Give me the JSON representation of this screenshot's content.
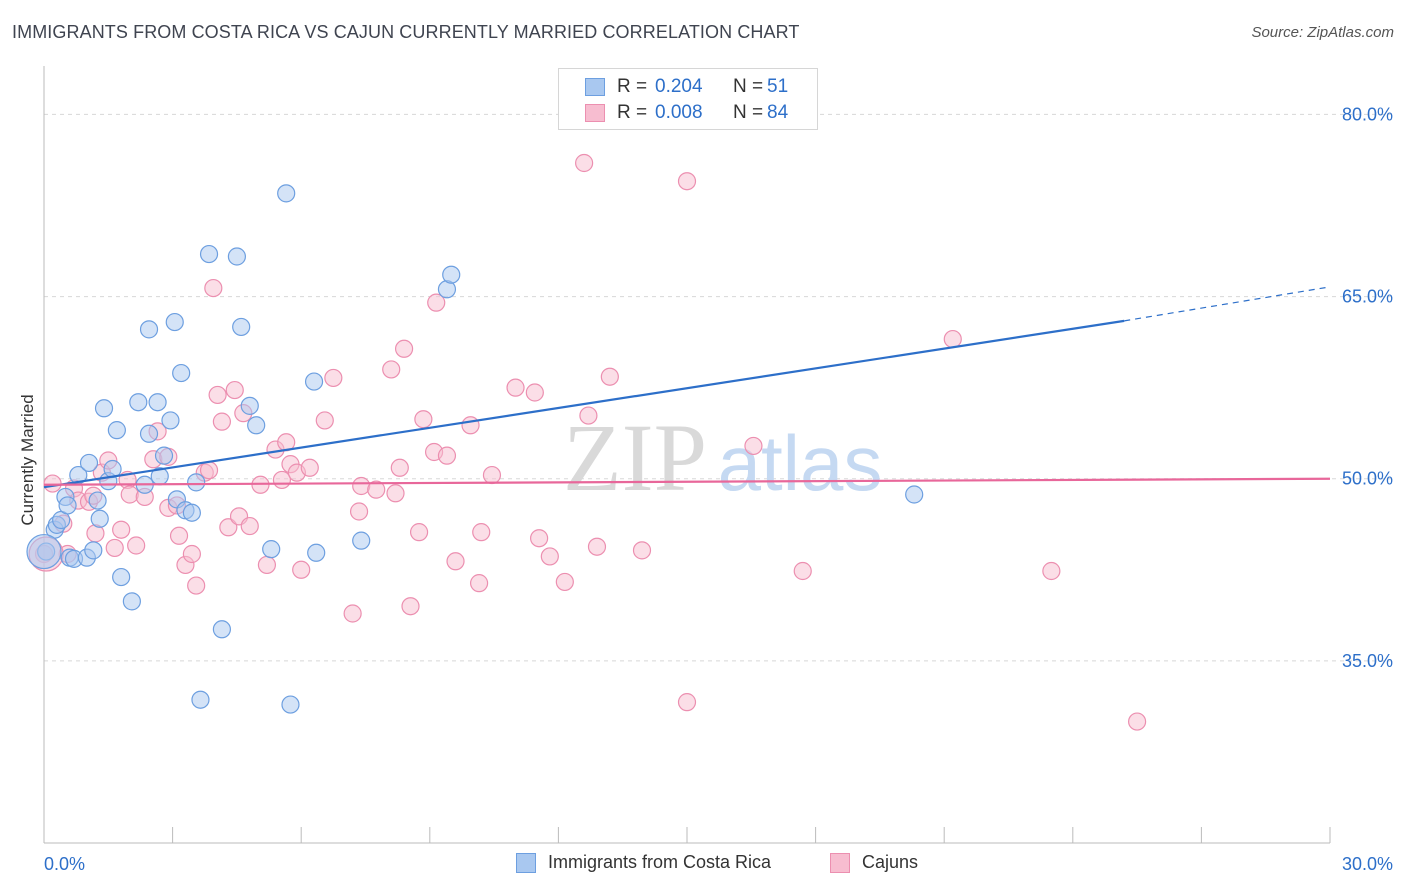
{
  "title": "IMMIGRANTS FROM COSTA RICA VS CAJUN CURRENTLY MARRIED CORRELATION CHART",
  "source": "Source: ZipAtlas.com",
  "watermark": {
    "zip": "ZIP",
    "atlas": "atlas"
  },
  "colors": {
    "blue_fill": "#a9c8f0",
    "blue_stroke": "#6d9fe0",
    "blue_line": "#2d6fc9",
    "pink_fill": "#f7bdd0",
    "pink_stroke": "#ec8fb0",
    "pink_line": "#e8679a",
    "tick_label": "#2d6fc9",
    "grid": "#d8d8d8"
  },
  "legend_top": [
    {
      "r_label": "R =",
      "r_value": "0.204",
      "n_label": "N =",
      "n_value": "51"
    },
    {
      "r_label": "R =",
      "r_value": "0.008",
      "n_label": "N =",
      "n_value": "84"
    }
  ],
  "legend_bottom": [
    "Immigrants from Costa Rica",
    "Cajuns"
  ],
  "chart_data": {
    "type": "scatter",
    "title": "IMMIGRANTS FROM COSTA RICA VS CAJUN CURRENTLY MARRIED CORRELATION CHART",
    "xlabel": "",
    "ylabel": "Currently Married",
    "xlim": [
      0,
      30
    ],
    "ylim": [
      20,
      83
    ],
    "x_tick_labels": [
      {
        "value": 0,
        "label": "0.0%"
      },
      {
        "value": 30,
        "label": "30.0%"
      }
    ],
    "y_tick_labels": [
      {
        "value": 35,
        "label": "35.0%"
      },
      {
        "value": 50,
        "label": "50.0%"
      },
      {
        "value": 65,
        "label": "65.0%"
      },
      {
        "value": 80,
        "label": "80.0%"
      }
    ],
    "grid": "horizontal dashed",
    "legend_position": "top-center",
    "series": [
      {
        "name": "Immigrants from Costa Rica",
        "trend": {
          "x0": 0,
          "y0": 49.3,
          "x1": 25.2,
          "y1": 63.0,
          "dashed_to_x": 30,
          "dashed_to_y": 65.8
        },
        "points": [
          [
            0.05,
            44.0
          ],
          [
            0.25,
            45.8
          ],
          [
            0.3,
            46.2
          ],
          [
            0.4,
            46.6
          ],
          [
            0.5,
            48.5
          ],
          [
            0.55,
            47.8
          ],
          [
            0.6,
            43.5
          ],
          [
            0.7,
            43.4
          ],
          [
            0.8,
            50.3
          ],
          [
            1.0,
            43.5
          ],
          [
            1.05,
            51.3
          ],
          [
            1.15,
            44.1
          ],
          [
            1.25,
            48.2
          ],
          [
            1.3,
            46.7
          ],
          [
            1.4,
            55.8
          ],
          [
            1.5,
            49.8
          ],
          [
            1.6,
            50.8
          ],
          [
            1.7,
            54.0
          ],
          [
            1.8,
            41.9
          ],
          [
            2.05,
            39.9
          ],
          [
            2.2,
            56.3
          ],
          [
            2.35,
            49.5
          ],
          [
            2.45,
            53.7
          ],
          [
            2.45,
            62.3
          ],
          [
            2.65,
            56.3
          ],
          [
            2.7,
            50.2
          ],
          [
            2.8,
            51.9
          ],
          [
            2.95,
            54.8
          ],
          [
            3.05,
            62.9
          ],
          [
            3.1,
            48.3
          ],
          [
            3.2,
            58.7
          ],
          [
            3.3,
            47.4
          ],
          [
            3.45,
            47.2
          ],
          [
            3.55,
            49.7
          ],
          [
            3.65,
            31.8
          ],
          [
            3.85,
            68.5
          ],
          [
            4.15,
            37.6
          ],
          [
            4.5,
            68.3
          ],
          [
            4.6,
            62.5
          ],
          [
            4.8,
            56.0
          ],
          [
            4.95,
            54.4
          ],
          [
            5.3,
            44.2
          ],
          [
            5.65,
            73.5
          ],
          [
            5.75,
            31.4
          ],
          [
            6.3,
            58.0
          ],
          [
            6.35,
            43.9
          ],
          [
            7.4,
            44.9
          ],
          [
            9.4,
            65.6
          ],
          [
            9.5,
            66.8
          ],
          [
            20.3,
            48.7
          ],
          [
            0.0,
            44.0
          ]
        ]
      },
      {
        "name": "Cajuns",
        "trend": {
          "x0": 0,
          "y0": 49.5,
          "x1": 30,
          "y1": 50.0
        },
        "points": [
          [
            0.0,
            43.8
          ],
          [
            0.2,
            49.6
          ],
          [
            0.45,
            46.3
          ],
          [
            0.55,
            43.8
          ],
          [
            0.7,
            49.2
          ],
          [
            0.8,
            48.2
          ],
          [
            1.05,
            48.1
          ],
          [
            1.15,
            48.6
          ],
          [
            1.2,
            45.5
          ],
          [
            1.35,
            50.5
          ],
          [
            1.5,
            51.5
          ],
          [
            1.65,
            44.3
          ],
          [
            1.8,
            45.8
          ],
          [
            1.95,
            49.9
          ],
          [
            2.0,
            48.7
          ],
          [
            2.15,
            44.5
          ],
          [
            2.35,
            48.5
          ],
          [
            2.55,
            51.6
          ],
          [
            2.65,
            53.9
          ],
          [
            2.9,
            51.8
          ],
          [
            2.9,
            47.6
          ],
          [
            3.1,
            47.8
          ],
          [
            3.15,
            45.3
          ],
          [
            3.3,
            42.9
          ],
          [
            3.45,
            43.8
          ],
          [
            3.55,
            41.2
          ],
          [
            3.75,
            50.5
          ],
          [
            3.85,
            50.7
          ],
          [
            3.95,
            65.7
          ],
          [
            4.05,
            56.9
          ],
          [
            4.15,
            54.7
          ],
          [
            4.3,
            46.0
          ],
          [
            4.45,
            57.3
          ],
          [
            4.55,
            46.9
          ],
          [
            4.65,
            55.4
          ],
          [
            4.8,
            46.1
          ],
          [
            5.05,
            49.5
          ],
          [
            5.2,
            42.9
          ],
          [
            5.4,
            52.4
          ],
          [
            5.55,
            49.9
          ],
          [
            5.65,
            53.0
          ],
          [
            5.75,
            51.2
          ],
          [
            5.9,
            50.5
          ],
          [
            6.0,
            42.5
          ],
          [
            6.2,
            50.9
          ],
          [
            6.55,
            54.8
          ],
          [
            6.75,
            58.3
          ],
          [
            7.2,
            38.9
          ],
          [
            7.35,
            47.3
          ],
          [
            7.4,
            49.4
          ],
          [
            7.75,
            49.1
          ],
          [
            8.1,
            59.0
          ],
          [
            8.2,
            48.8
          ],
          [
            8.3,
            50.9
          ],
          [
            8.4,
            60.7
          ],
          [
            8.55,
            39.5
          ],
          [
            8.75,
            45.6
          ],
          [
            8.85,
            54.9
          ],
          [
            9.1,
            52.2
          ],
          [
            9.15,
            64.5
          ],
          [
            9.4,
            51.9
          ],
          [
            9.6,
            43.2
          ],
          [
            9.95,
            54.4
          ],
          [
            10.15,
            41.4
          ],
          [
            10.2,
            45.6
          ],
          [
            10.45,
            50.3
          ],
          [
            11.0,
            57.5
          ],
          [
            11.45,
            57.1
          ],
          [
            11.55,
            45.1
          ],
          [
            11.8,
            43.6
          ],
          [
            12.15,
            41.5
          ],
          [
            12.6,
            76.0
          ],
          [
            12.7,
            55.2
          ],
          [
            12.9,
            44.4
          ],
          [
            13.2,
            58.4
          ],
          [
            13.95,
            44.1
          ],
          [
            15.0,
            74.5
          ],
          [
            15.0,
            31.6
          ],
          [
            16.55,
            52.7
          ],
          [
            17.7,
            42.4
          ],
          [
            21.2,
            61.5
          ],
          [
            23.5,
            42.4
          ],
          [
            25.5,
            30.0
          ],
          [
            0.05,
            43.8
          ]
        ]
      }
    ]
  }
}
